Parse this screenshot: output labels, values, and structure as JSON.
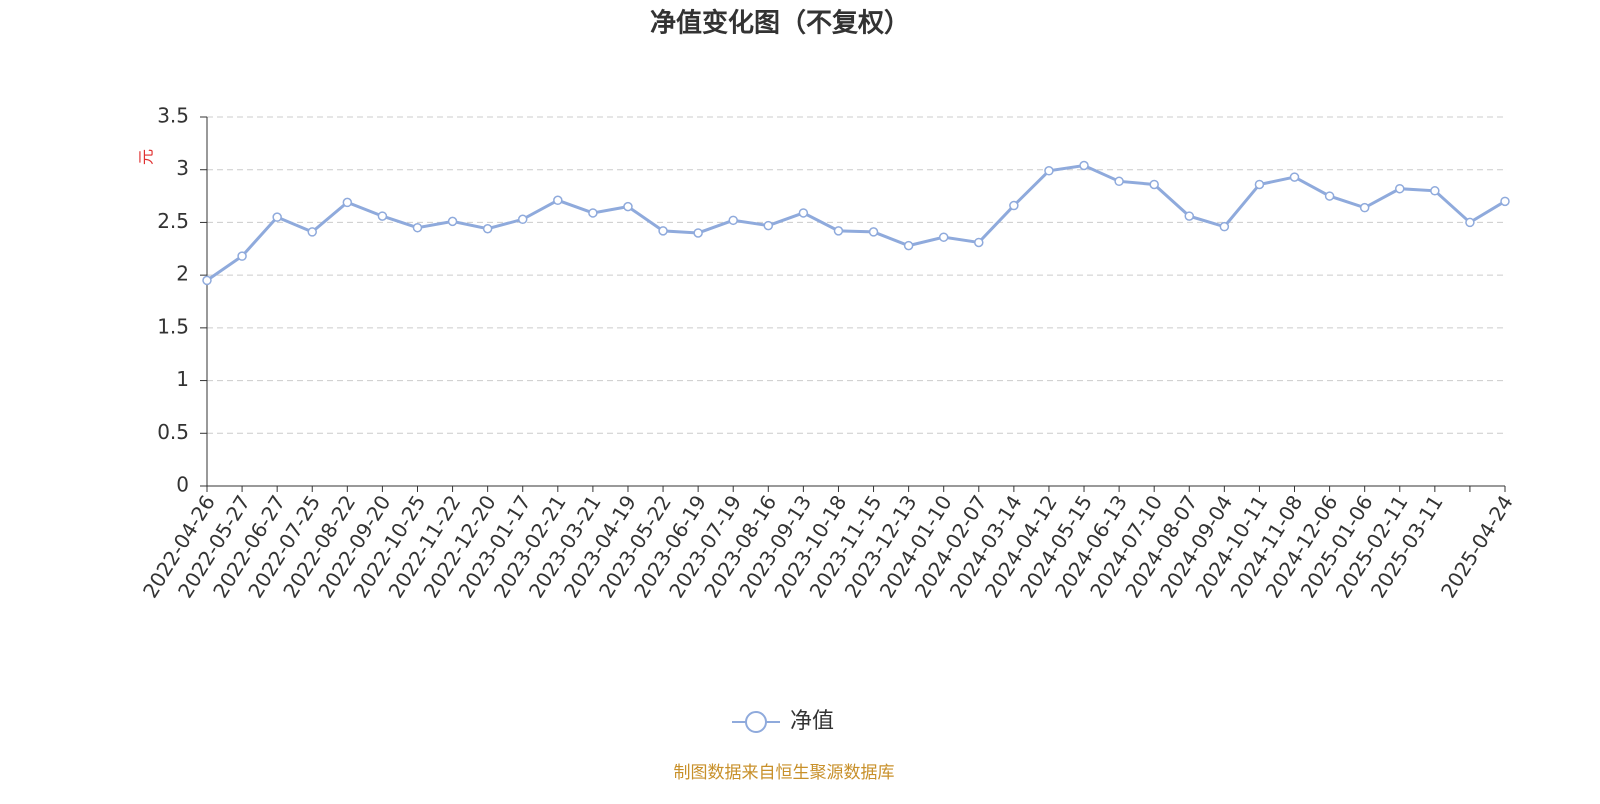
{
  "chart_data": {
    "type": "line",
    "title": "净值变化图（不复权）",
    "y_label": "元",
    "source": "制图数据来自恒生聚源数据库",
    "categories": [
      "2022-04-26",
      "2022-05-27",
      "2022-06-27",
      "2022-07-25",
      "2022-08-22",
      "2022-09-20",
      "2022-10-25",
      "2022-11-22",
      "2022-12-20",
      "2023-01-17",
      "2023-02-21",
      "2023-03-21",
      "2023-04-19",
      "2023-05-22",
      "2023-06-19",
      "2023-07-19",
      "2023-08-16",
      "2023-09-13",
      "2023-10-18",
      "2023-11-15",
      "2023-12-13",
      "2024-01-10",
      "2024-02-07",
      "2024-03-14",
      "2024-04-12",
      "2024-05-15",
      "2024-06-13",
      "2024-07-10",
      "2024-08-07",
      "2024-09-04",
      "2024-10-11",
      "2024-11-08",
      "2024-12-06",
      "2025-01-06",
      "2025-02-11",
      "2025-03-11",
      null,
      "2025-04-24"
    ],
    "series": [
      {
        "name": "净值",
        "color": "#8faadc",
        "values": [
          1.95,
          2.18,
          2.55,
          2.41,
          2.69,
          2.56,
          2.45,
          2.51,
          2.44,
          2.53,
          2.71,
          2.59,
          2.65,
          2.42,
          2.4,
          2.52,
          2.47,
          2.59,
          2.42,
          2.41,
          2.28,
          2.36,
          2.31,
          2.66,
          2.99,
          3.04,
          2.89,
          2.86,
          2.56,
          2.46,
          2.86,
          2.93,
          2.75,
          2.64,
          2.82,
          2.8,
          2.5,
          2.7
        ]
      }
    ],
    "ylim": [
      0,
      3.5
    ],
    "yticks": [
      0,
      0.5,
      1,
      1.5,
      2,
      2.5,
      3,
      3.5
    ],
    "grid": true
  }
}
